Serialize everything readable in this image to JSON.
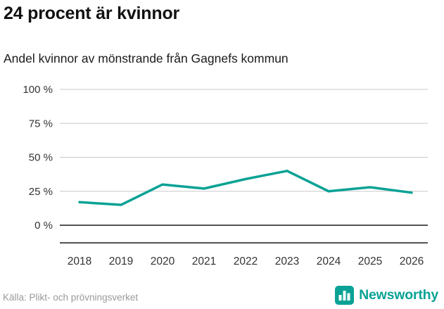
{
  "title": "24 procent är kvinnor",
  "subtitle": "Andel kvinnor av mönstrande från Gagnefs kommun",
  "source": "Källa: Plikt- och prövningsverket",
  "brand": {
    "name": "Newsworthy",
    "color": "#0aa295"
  },
  "chart_data": {
    "type": "line",
    "title": "24 procent är kvinnor",
    "subtitle": "Andel kvinnor av mönstrande från Gagnefs kommun",
    "x": [
      2018,
      2019,
      2020,
      2021,
      2022,
      2023,
      2024,
      2025,
      2026
    ],
    "values": [
      17,
      15,
      30,
      27,
      34,
      40,
      25,
      28,
      24
    ],
    "unit": "%",
    "ylim": [
      0,
      100
    ],
    "yticks": [
      0,
      25,
      50,
      75,
      100
    ],
    "ytick_labels": [
      "0 %",
      "25 %",
      "50 %",
      "75 %",
      "100 %"
    ],
    "xlabel": "",
    "ylabel": "",
    "grid": true,
    "legend": "none",
    "line_color": "#0aa295",
    "grid_color": "#c9c9c9",
    "axis_color": "#1a1a1a"
  }
}
